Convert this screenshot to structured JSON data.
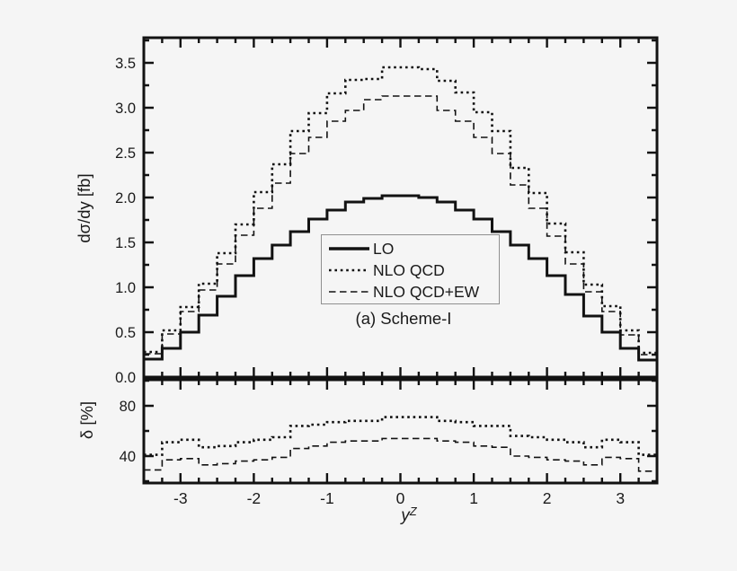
{
  "figure": {
    "background": "#f5f5f5",
    "ink": "#121212",
    "text_color": "#1a1a1a",
    "caption": "(a) Scheme-I",
    "legend": {
      "items": [
        {
          "label": "LO",
          "style": "solid"
        },
        {
          "label": "NLO QCD",
          "style": "dotted"
        },
        {
          "label": "NLO QCD+EW",
          "style": "dashed"
        }
      ]
    },
    "x_axis": {
      "label_base": "y",
      "label_sup": "Z",
      "tick_values": [
        -3,
        -2,
        -1,
        0,
        1,
        2,
        3
      ],
      "tick_labels": [
        "-3",
        "-2",
        "-1",
        "0",
        "1",
        "2",
        "3"
      ],
      "range": [
        -3.5,
        3.5
      ],
      "minor_step": 0.25
    },
    "top_panel": {
      "ylabel": "dσ/dy [fb]",
      "ytick_values": [
        0,
        0.5,
        1,
        1.5,
        2,
        2.5,
        3,
        3.5
      ],
      "ytick_labels": [
        "0.0",
        "0.5",
        "1.0",
        "1.5",
        "2.0",
        "2.5",
        "3.0",
        "3.5"
      ],
      "yticks_minor": [
        0.25,
        0.75,
        1.25,
        1.75,
        2.25,
        2.75,
        3.25,
        3.75
      ],
      "ylim": [
        0,
        3.78
      ]
    },
    "bottom_panel": {
      "ylabel": "δ [%]",
      "ytick_values": [
        40,
        80
      ],
      "ytick_labels": [
        "40",
        "80"
      ],
      "yticks_minor": [
        20,
        60,
        100
      ],
      "ylim": [
        18.6,
        100.7
      ]
    }
  },
  "chart_data": [
    {
      "type": "line",
      "subtype": "step-histogram",
      "title": "",
      "xlabel": "y^Z",
      "ylabel": "dσ/dy [fb]",
      "xlim": [
        -3.5,
        3.5
      ],
      "ylim": [
        0,
        3.78
      ],
      "bin_start": -3.5,
      "bin_width": 0.25,
      "grid": false,
      "legend_position": "center-left-inside",
      "series": [
        {
          "name": "LO",
          "key": "lo-curve",
          "style": "solid",
          "values": [
            0.2,
            0.32,
            0.5,
            0.69,
            0.9,
            1.13,
            1.32,
            1.47,
            1.62,
            1.76,
            1.86,
            1.95,
            1.99,
            2.02,
            2.02,
            2.0,
            1.95,
            1.86,
            1.76,
            1.62,
            1.47,
            1.32,
            1.13,
            0.92,
            0.68,
            0.5,
            0.32,
            0.19
          ]
        },
        {
          "name": "NLO QCD",
          "key": "nlo-qcd-curve",
          "style": "dotted",
          "values": [
            0.28,
            0.52,
            0.78,
            1.04,
            1.38,
            1.7,
            2.06,
            2.37,
            2.74,
            2.94,
            3.16,
            3.31,
            3.32,
            3.45,
            3.45,
            3.43,
            3.3,
            3.17,
            2.95,
            2.74,
            2.33,
            2.05,
            1.71,
            1.39,
            1.03,
            0.79,
            0.52,
            0.27
          ]
        },
        {
          "name": "NLO QCD+EW",
          "key": "nlo-qcd-ew-curve",
          "style": "dashed",
          "values": [
            0.26,
            0.48,
            0.73,
            0.97,
            1.26,
            1.58,
            1.88,
            2.16,
            2.49,
            2.67,
            2.85,
            2.97,
            3.09,
            3.13,
            3.13,
            3.13,
            2.97,
            2.85,
            2.67,
            2.49,
            2.14,
            1.88,
            1.57,
            1.26,
            0.95,
            0.73,
            0.47,
            0.25
          ]
        }
      ]
    },
    {
      "type": "line",
      "subtype": "step-histogram",
      "title": "",
      "xlabel": "y^Z",
      "ylabel": "δ [%]",
      "xlim": [
        -3.5,
        3.5
      ],
      "ylim": [
        18.6,
        100.7
      ],
      "bin_start": -3.5,
      "bin_width": 0.25,
      "grid": false,
      "series": [
        {
          "name": "NLO QCD",
          "key": "delta-qcd-curve",
          "style": "dotted",
          "values": [
            41,
            51,
            53,
            47,
            48,
            51,
            53,
            55,
            64,
            65,
            67,
            68,
            68,
            71,
            71,
            71,
            68,
            67,
            64,
            64,
            56,
            55,
            53,
            51,
            47,
            53,
            51,
            41
          ]
        },
        {
          "name": "NLO QCD+EW",
          "key": "delta-qcd-ew-curve",
          "style": "dashed",
          "values": [
            29,
            37,
            38,
            33,
            34,
            36,
            37,
            39,
            46,
            48,
            51,
            52,
            52,
            54,
            54,
            54,
            52,
            51,
            48,
            47,
            40,
            39,
            37,
            36,
            33,
            39,
            38,
            28
          ]
        }
      ]
    }
  ]
}
